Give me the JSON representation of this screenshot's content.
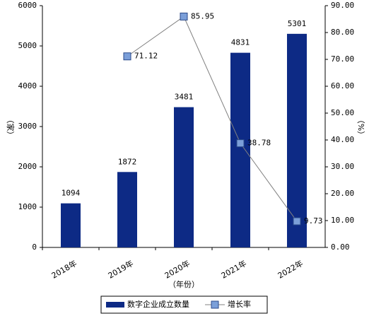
{
  "chart_data": {
    "type": "bar",
    "categories": [
      "2018年",
      "2019年",
      "2020年",
      "2021年",
      "2022年"
    ],
    "x_label": "（年份）",
    "y_label": "（家）",
    "y2_label": "（%）",
    "series": [
      {
        "name": "数字企业成立数量",
        "color": "#0d2a85",
        "values": [
          1094,
          1872,
          3481,
          4831,
          5301
        ]
      },
      {
        "name": "增长率",
        "type": "line",
        "axis": "y2",
        "color": "#808080",
        "marker_color": "#7b9fd9",
        "values": [
          null,
          71.12,
          85.95,
          38.78,
          9.73
        ]
      }
    ],
    "ylim": [
      0,
      6000
    ],
    "yticks": [
      0,
      1000,
      2000,
      3000,
      4000,
      5000,
      6000
    ],
    "y2lim": [
      0,
      90
    ],
    "y2ticks": [
      {
        "value": 0,
        "label": "0.00"
      },
      {
        "value": 10,
        "label": "10.00"
      },
      {
        "value": 20,
        "label": "20.00"
      },
      {
        "value": 30,
        "label": "30.00"
      },
      {
        "value": 40,
        "label": "40.00"
      },
      {
        "value": 50,
        "label": "50.00"
      },
      {
        "value": 60,
        "label": "60.00"
      },
      {
        "value": 70,
        "label": "70.00"
      },
      {
        "value": 80,
        "label": "80.00"
      },
      {
        "value": 90,
        "label": "90.00"
      }
    ],
    "legend": "bottom"
  }
}
